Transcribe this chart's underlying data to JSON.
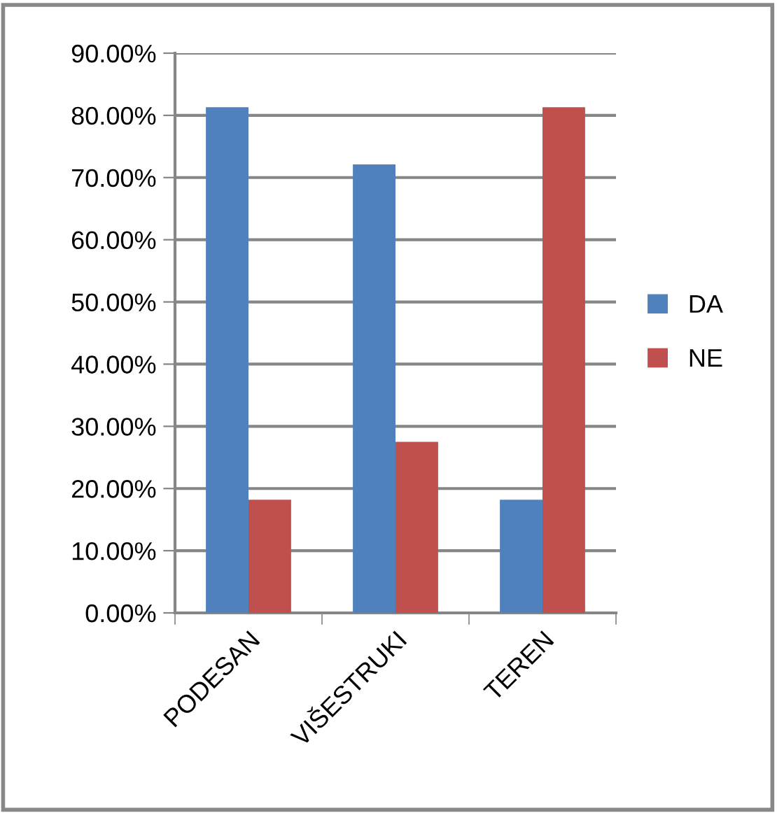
{
  "chart_data": {
    "type": "bar",
    "categories": [
      "PODESAN",
      "VIŠESTRUKI",
      "TEREN"
    ],
    "series": [
      {
        "name": "DA",
        "color": "#4f81bd",
        "values": [
          81.3,
          72.1,
          18.2
        ]
      },
      {
        "name": "NE",
        "color": "#c0504d",
        "values": [
          18.2,
          27.5,
          81.3
        ]
      }
    ],
    "ylim": [
      0,
      90
    ],
    "yticks": [
      {
        "value": 0,
        "label": "0.00%"
      },
      {
        "value": 10,
        "label": "10.00%"
      },
      {
        "value": 20,
        "label": "20.00%"
      },
      {
        "value": 30,
        "label": "30.00%"
      },
      {
        "value": 40,
        "label": "40.00%"
      },
      {
        "value": 50,
        "label": "50.00%"
      },
      {
        "value": 60,
        "label": "60.00%"
      },
      {
        "value": 70,
        "label": "70.00%"
      },
      {
        "value": 80,
        "label": "80.00%"
      },
      {
        "value": 90,
        "label": "90.00%"
      }
    ],
    "grid": "y",
    "legend": "right"
  }
}
